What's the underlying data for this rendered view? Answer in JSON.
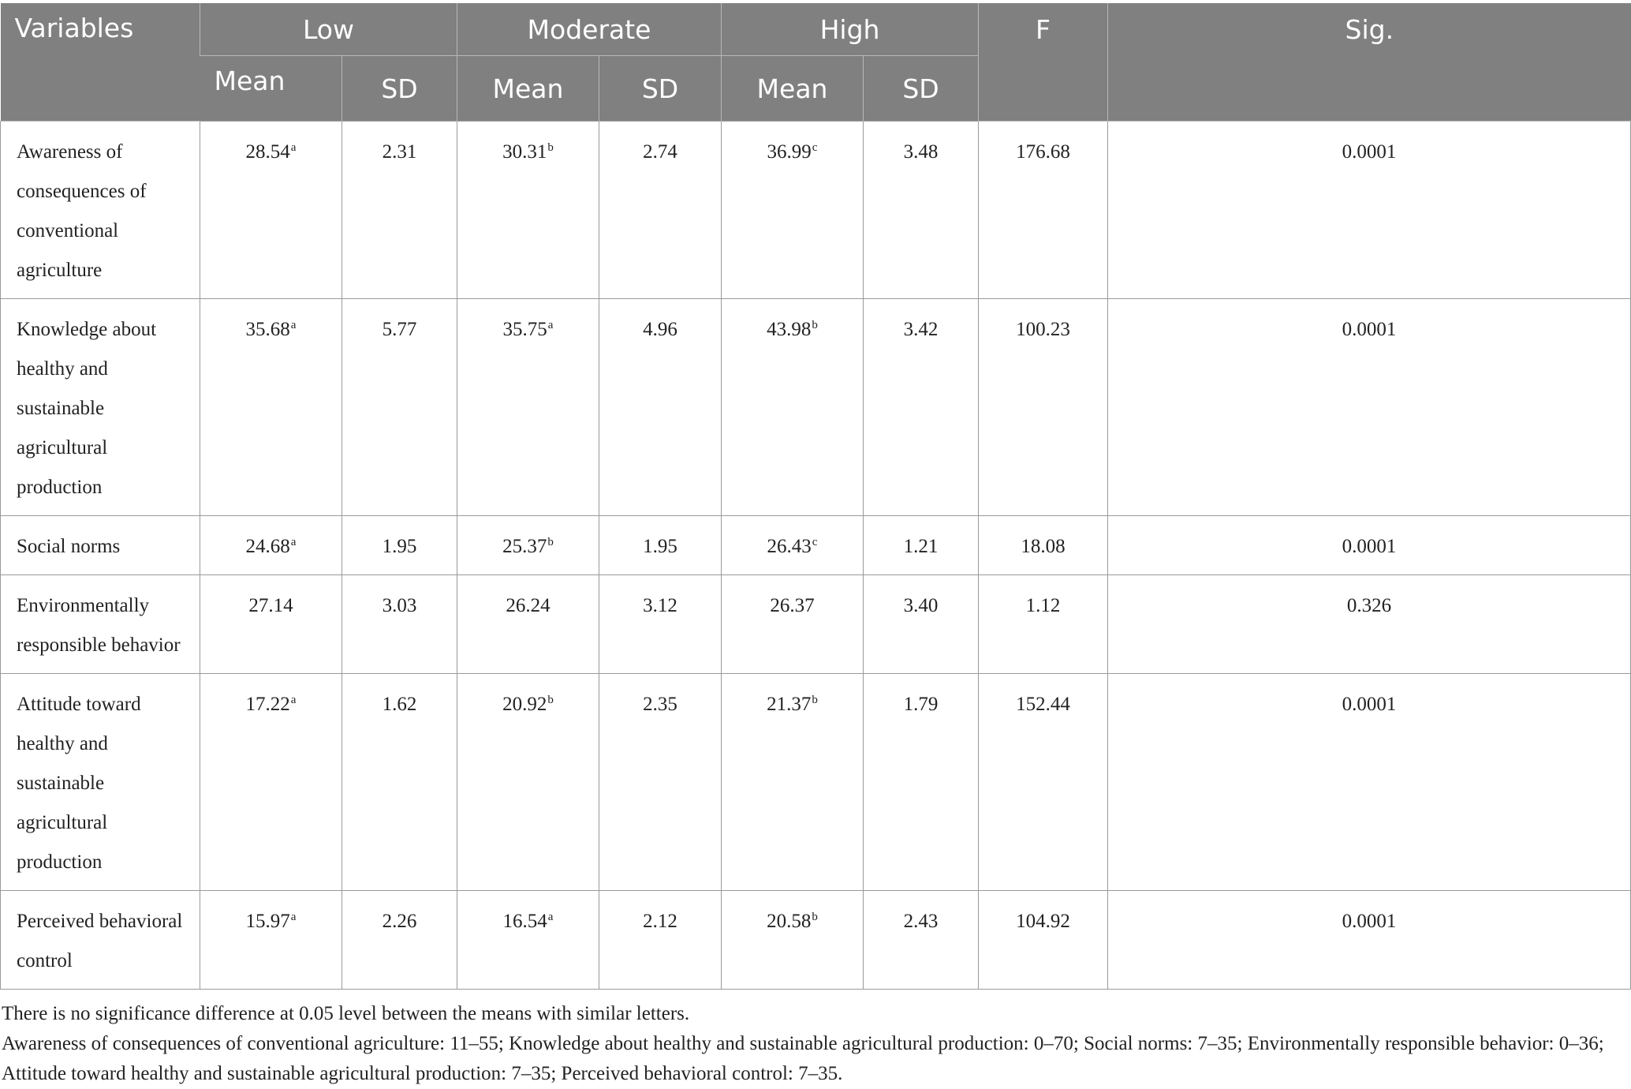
{
  "table": {
    "header": {
      "variables": "Variables",
      "groups": [
        "Low",
        "Moderate",
        "High"
      ],
      "f": "F",
      "sig": "Sig.",
      "subheaders": [
        "Mean",
        "SD",
        "Mean",
        "SD",
        "Mean",
        "SD"
      ]
    },
    "rows": [
      {
        "label": "Awareness of consequences of conventional agriculture",
        "low_mean": "28.54",
        "low_mean_sup": "a",
        "low_sd": "2.31",
        "mod_mean": "30.31",
        "mod_mean_sup": "b",
        "mod_sd": "2.74",
        "high_mean": "36.99",
        "high_mean_sup": "c",
        "high_sd": "3.48",
        "f": "176.68",
        "sig": "0.0001"
      },
      {
        "label": "Knowledge about healthy and sustainable agricultural production",
        "low_mean": "35.68",
        "low_mean_sup": "a",
        "low_sd": "5.77",
        "mod_mean": "35.75",
        "mod_mean_sup": "a",
        "mod_sd": "4.96",
        "high_mean": "43.98",
        "high_mean_sup": "b",
        "high_sd": "3.42",
        "f": "100.23",
        "sig": "0.0001"
      },
      {
        "label": "Social norms",
        "low_mean": "24.68",
        "low_mean_sup": "a",
        "low_sd": "1.95",
        "mod_mean": "25.37",
        "mod_mean_sup": "b",
        "mod_sd": "1.95",
        "high_mean": "26.43",
        "high_mean_sup": "c",
        "high_sd": "1.21",
        "f": "18.08",
        "sig": "0.0001"
      },
      {
        "label": "Environmentally responsible behavior",
        "low_mean": "27.14",
        "low_mean_sup": "",
        "low_sd": "3.03",
        "mod_mean": "26.24",
        "mod_mean_sup": "",
        "mod_sd": "3.12",
        "high_mean": "26.37",
        "high_mean_sup": "",
        "high_sd": "3.40",
        "f": "1.12",
        "sig": "0.326"
      },
      {
        "label": "Attitude toward healthy and sustainable agricultural production",
        "low_mean": "17.22",
        "low_mean_sup": "a",
        "low_sd": "1.62",
        "mod_mean": "20.92",
        "mod_mean_sup": "b",
        "mod_sd": "2.35",
        "high_mean": "21.37",
        "high_mean_sup": "b",
        "high_sd": "1.79",
        "f": "152.44",
        "sig": "0.0001"
      },
      {
        "label": "Perceived behavioral control",
        "low_mean": "15.97",
        "low_mean_sup": "a",
        "low_sd": "2.26",
        "mod_mean": "16.54",
        "mod_mean_sup": "a",
        "mod_sd": "2.12",
        "high_mean": "20.58",
        "high_mean_sup": "b",
        "high_sd": "2.43",
        "f": "104.92",
        "sig": "0.0001"
      }
    ]
  },
  "notes": {
    "line1": "There is no significance difference at 0.05 level between the means with similar letters.",
    "line2": "Awareness of consequences of conventional agriculture: 11–55; Knowledge about healthy and sustainable agricultural production: 0–70; Social norms: 7–35; Environmentally responsible behavior: 0–36; Attitude toward healthy and sustainable agricultural production: 7–35; Perceived behavioral control: 7–35."
  },
  "colors": {
    "header_bg": "#808080",
    "header_text": "#ffffff",
    "grid": "#9a9a9a"
  }
}
